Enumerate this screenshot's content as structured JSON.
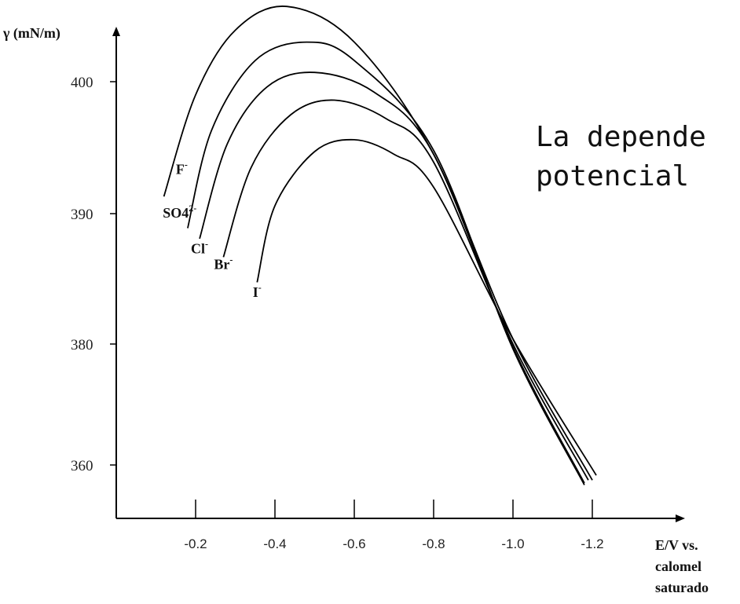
{
  "overlay": {
    "line1": "La depende",
    "line2": "potencial"
  },
  "chart_data": {
    "type": "line",
    "ylabel": "γ (mN/m)",
    "xlabel_lines": [
      "E/V vs.",
      "calomel",
      "saturado"
    ],
    "y_tick_labels": [
      {
        "v": 400,
        "label": "400"
      },
      {
        "v": 390,
        "label": "390"
      },
      {
        "v": 380,
        "label": "380"
      },
      {
        "v": 360,
        "label": "360"
      }
    ],
    "x_tick_labels": [
      {
        "v": -0.2,
        "label": "-0.2"
      },
      {
        "v": -0.4,
        "label": "-0.4"
      },
      {
        "v": -0.6,
        "label": "-0.6"
      },
      {
        "v": -0.8,
        "label": "-0.8"
      },
      {
        "v": -1.0,
        "label": "-1.0"
      },
      {
        "v": -1.2,
        "label": "-1.2"
      }
    ],
    "series": [
      {
        "name": "F⁻",
        "label_main": "F",
        "label_sup": "-",
        "label_at": [
          -0.165,
          393.0
        ],
        "x": [
          -0.12,
          -0.2,
          -0.3,
          -0.43,
          -0.6,
          -0.8,
          -1.0,
          -1.2
        ],
        "y": [
          391.3,
          399.0,
          403.9,
          405.7,
          403.0,
          394.5,
          380.5,
          357.5
        ]
      },
      {
        "name": "SO4²⁻",
        "label_main": "SO4",
        "label_sup": "2-",
        "label_at": [
          -0.16,
          389.7
        ],
        "x": [
          -0.18,
          -0.24,
          -0.35,
          -0.48,
          -0.6,
          -0.8,
          -1.0,
          -1.18
        ],
        "y": [
          388.9,
          396.3,
          401.6,
          403.0,
          401.6,
          394.8,
          379.2,
          356.7
        ]
      },
      {
        "name": "Cl⁻",
        "label_main": "Cl",
        "label_sup": "-",
        "label_at": [
          -0.21,
          387.0
        ],
        "x": [
          -0.21,
          -0.28,
          -0.38,
          -0.5,
          -0.65,
          -0.8,
          -1.0,
          -1.18
        ],
        "y": [
          388.1,
          395.3,
          399.6,
          400.7,
          399.2,
          394.5,
          379.5,
          357.0
        ]
      },
      {
        "name": "Br⁻",
        "label_main": "Br",
        "label_sup": "-",
        "label_at": [
          -0.27,
          385.8
        ],
        "x": [
          -0.27,
          -0.34,
          -0.44,
          -0.55,
          -0.68,
          -0.8,
          -1.0,
          -1.19
        ],
        "y": [
          386.7,
          393.5,
          397.5,
          398.6,
          397.2,
          393.9,
          380.0,
          357.5
        ]
      },
      {
        "name": "I⁻",
        "label_main": "I",
        "label_sup": "-",
        "label_at": [
          -0.355,
          383.7
        ],
        "x": [
          -0.355,
          -0.4,
          -0.5,
          -0.6,
          -0.7,
          -0.8,
          -1.0,
          -1.21
        ],
        "y": [
          384.8,
          390.6,
          394.7,
          395.6,
          394.5,
          392.0,
          380.5,
          358.3
        ]
      }
    ]
  }
}
